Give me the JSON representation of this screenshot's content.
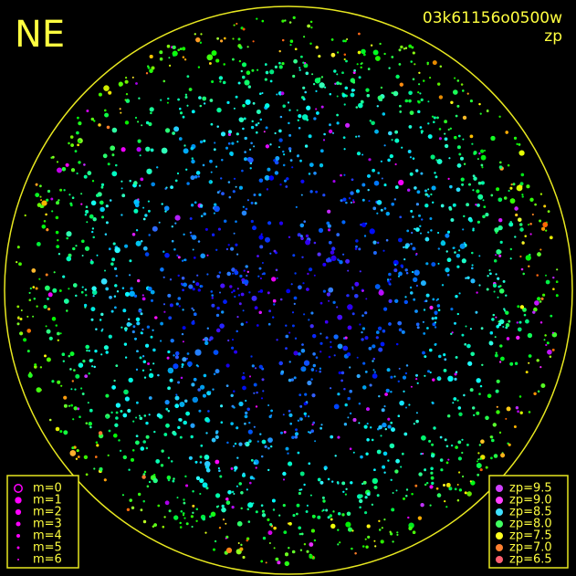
{
  "header": {
    "direction": "NE",
    "frame_id": "03k61156o0500w",
    "quantity": "zp"
  },
  "legend_magnitude": {
    "items": [
      "m=0",
      "m=1",
      "m=2",
      "m=3",
      "m=4",
      "m=5",
      "m=6"
    ],
    "color": "#ff00ff"
  },
  "legend_zp": {
    "items": [
      {
        "label": "zp=9.5",
        "color": "#d040ff"
      },
      {
        "label": "zp=9.0",
        "color": "#ff40ff"
      },
      {
        "label": "zp=8.5",
        "color": "#40e0ff"
      },
      {
        "label": "zp=8.0",
        "color": "#40ff60"
      },
      {
        "label": "zp=7.5",
        "color": "#ffff20"
      },
      {
        "label": "zp=7.0",
        "color": "#ff8030"
      },
      {
        "label": "zp=6.5",
        "color": "#ff6070"
      }
    ]
  }
}
